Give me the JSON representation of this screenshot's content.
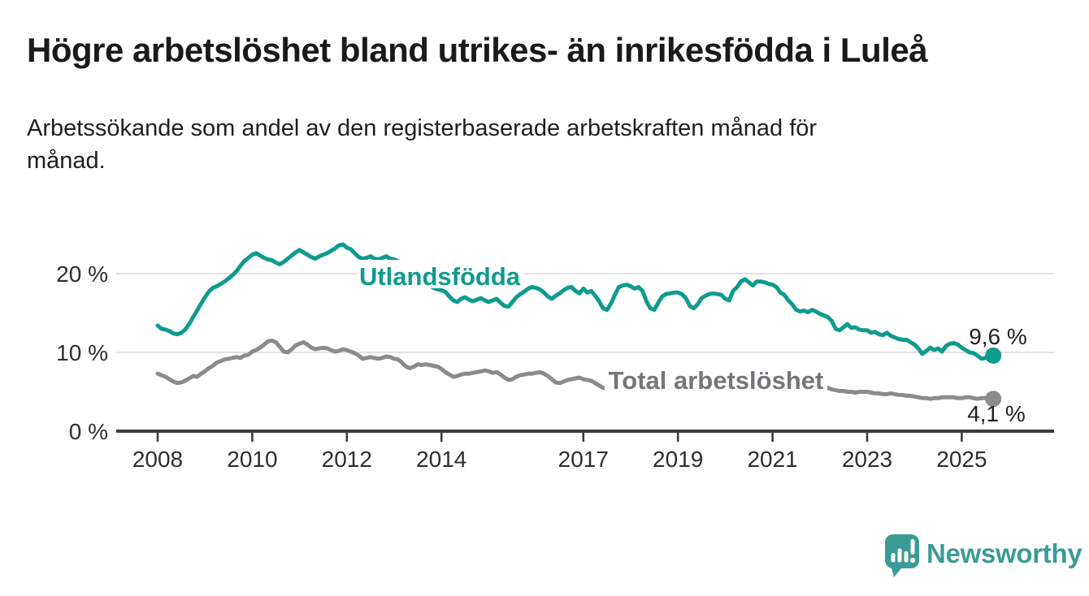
{
  "header": {
    "title": "Högre arbetslöshet bland utrikes- än inrikesfödda i Luleå",
    "subtitle_lines": [
      "Arbetssökande som andel av den registerbaserade arbetskraften månad för",
      "månad."
    ]
  },
  "chart_data": {
    "type": "line",
    "title": "Högre arbetslöshet bland utrikes- än inrikesfödda i Luleå",
    "subtitle": "Arbetssökande som andel av den registerbaserade arbetskraften månad för månad.",
    "grid": "horizontal",
    "legend": "inline-labels",
    "unit": "%",
    "x_start_year": 2008,
    "x_start_month": 1,
    "x_interval": "monthly",
    "x_axis": {
      "tick_years": [
        2008,
        2010,
        2012,
        2014,
        2017,
        2019,
        2021,
        2023,
        2025
      ],
      "range": [
        2007.1,
        2026.0
      ]
    },
    "y_axis": {
      "ticks": [
        0,
        10,
        20
      ],
      "tick_labels": [
        "0 %",
        "10 %",
        "20 %"
      ],
      "range": [
        0,
        25.5
      ]
    },
    "series": [
      {
        "name": "Utlandsfödda",
        "label": "Utlandsfödda",
        "color": "#0f9b8e",
        "label_color": "#0f9b8e",
        "end_label": "9,6 %",
        "end_value": 9.6,
        "values": [
          13.4,
          13.0,
          12.9,
          12.7,
          12.4,
          12.3,
          12.5,
          12.9,
          13.6,
          14.5,
          15.3,
          16.2,
          17.0,
          17.7,
          18.2,
          18.4,
          18.7,
          19.0,
          19.4,
          19.8,
          20.3,
          21.0,
          21.6,
          22.0,
          22.4,
          22.6,
          22.3,
          22.0,
          21.8,
          21.7,
          21.4,
          21.2,
          21.5,
          21.9,
          22.3,
          22.7,
          23.0,
          22.7,
          22.4,
          22.1,
          21.9,
          22.2,
          22.4,
          22.6,
          22.9,
          23.2,
          23.6,
          23.7,
          23.3,
          23.1,
          22.6,
          22.1,
          21.9,
          22.0,
          22.2,
          21.9,
          21.8,
          22.0,
          22.2,
          21.9,
          21.8,
          21.6,
          21.3,
          21.0,
          20.7,
          20.3,
          19.9,
          19.4,
          18.9,
          18.5,
          18.2,
          18.0,
          17.9,
          17.7,
          17.1,
          16.6,
          16.4,
          16.8,
          17.0,
          16.7,
          16.5,
          16.7,
          16.9,
          16.6,
          16.4,
          16.6,
          16.8,
          16.3,
          15.9,
          15.8,
          16.4,
          17.0,
          17.4,
          17.7,
          18.1,
          18.3,
          18.2,
          18.0,
          17.6,
          17.1,
          16.8,
          17.2,
          17.5,
          17.9,
          18.2,
          18.3,
          17.8,
          17.5,
          18.1,
          17.6,
          17.8,
          17.2,
          16.5,
          15.6,
          15.4,
          16.2,
          17.3,
          18.3,
          18.5,
          18.6,
          18.4,
          18.1,
          18.3,
          17.8,
          16.5,
          15.6,
          15.4,
          16.3,
          17.1,
          17.4,
          17.5,
          17.6,
          17.6,
          17.4,
          16.9,
          15.9,
          15.6,
          16.1,
          16.9,
          17.2,
          17.4,
          17.5,
          17.4,
          17.3,
          16.8,
          16.6,
          17.8,
          18.3,
          19.0,
          19.3,
          18.9,
          18.5,
          19.0,
          19.0,
          18.9,
          18.7,
          18.6,
          18.3,
          17.6,
          17.3,
          16.6,
          16.1,
          15.4,
          15.2,
          15.3,
          15.1,
          15.4,
          15.2,
          14.9,
          14.7,
          14.5,
          14.0,
          13.0,
          12.8,
          13.2,
          13.6,
          13.1,
          13.2,
          12.9,
          12.8,
          12.8,
          12.5,
          12.6,
          12.3,
          12.2,
          12.5,
          12.1,
          11.9,
          11.7,
          11.6,
          11.6,
          11.3,
          11.0,
          10.5,
          9.8,
          10.2,
          10.6,
          10.3,
          10.5,
          10.1,
          10.8,
          11.1,
          11.2,
          11.0,
          10.6,
          10.3,
          10.0,
          9.9,
          9.6,
          9.2,
          9.3,
          9.6,
          9.6
        ]
      },
      {
        "name": "Total arbetslöshet",
        "label": "Total arbetslöshet",
        "color": "#8b8b8f",
        "label_color": "#75757a",
        "end_label": "4,1 %",
        "end_value": 4.1,
        "values": [
          7.3,
          7.1,
          6.9,
          6.6,
          6.3,
          6.1,
          6.2,
          6.4,
          6.7,
          7.0,
          6.9,
          7.3,
          7.6,
          8.0,
          8.3,
          8.7,
          8.9,
          9.1,
          9.2,
          9.3,
          9.4,
          9.3,
          9.6,
          9.7,
          10.1,
          10.3,
          10.6,
          11.0,
          11.4,
          11.5,
          11.3,
          10.7,
          10.1,
          10.0,
          10.4,
          10.9,
          11.1,
          11.3,
          11.0,
          10.6,
          10.4,
          10.5,
          10.6,
          10.5,
          10.3,
          10.1,
          10.2,
          10.4,
          10.3,
          10.1,
          9.9,
          9.6,
          9.2,
          9.3,
          9.4,
          9.3,
          9.2,
          9.3,
          9.5,
          9.4,
          9.2,
          9.1,
          8.7,
          8.2,
          8.0,
          8.2,
          8.5,
          8.4,
          8.5,
          8.4,
          8.3,
          8.2,
          7.9,
          7.5,
          7.2,
          6.9,
          7.0,
          7.2,
          7.3,
          7.3,
          7.4,
          7.5,
          7.6,
          7.7,
          7.6,
          7.4,
          7.5,
          7.2,
          6.8,
          6.5,
          6.6,
          6.9,
          7.1,
          7.2,
          7.3,
          7.3,
          7.4,
          7.5,
          7.3,
          7.0,
          6.6,
          6.2,
          6.1,
          6.3,
          6.5,
          6.6,
          6.7,
          6.8,
          6.6,
          6.5,
          6.4,
          6.1,
          5.8,
          5.5,
          5.4,
          5.6,
          5.9,
          6.1,
          6.2,
          6.3,
          6.2,
          6.1,
          6.0,
          5.7,
          5.4,
          5.2,
          5.3,
          5.5,
          5.6,
          5.7,
          5.8,
          5.8,
          5.8,
          5.7,
          5.6,
          5.4,
          5.2,
          5.3,
          5.5,
          5.6,
          5.7,
          5.8,
          5.9,
          6.0,
          6.2,
          6.3,
          6.8,
          7.3,
          7.6,
          7.8,
          7.7,
          7.5,
          7.4,
          7.2,
          7.1,
          7.0,
          6.9,
          6.8,
          6.6,
          6.4,
          6.2,
          6.0,
          5.9,
          5.8,
          5.7,
          5.7,
          5.6,
          5.6,
          5.6,
          5.6,
          5.5,
          5.3,
          5.2,
          5.1,
          5.1,
          5.0,
          5.0,
          4.9,
          5.0,
          5.0,
          5.0,
          4.9,
          4.8,
          4.8,
          4.7,
          4.7,
          4.8,
          4.7,
          4.6,
          4.6,
          4.5,
          4.5,
          4.4,
          4.3,
          4.2,
          4.2,
          4.1,
          4.2,
          4.2,
          4.3,
          4.3,
          4.3,
          4.3,
          4.2,
          4.2,
          4.3,
          4.3,
          4.2,
          4.1,
          4.2,
          4.2,
          4.1,
          4.1
        ]
      }
    ]
  },
  "footer": {
    "brand": "Newsworthy",
    "brand_color": "#3c9b96",
    "logo_icon": "speech-bubble-bar-chart-icon"
  }
}
